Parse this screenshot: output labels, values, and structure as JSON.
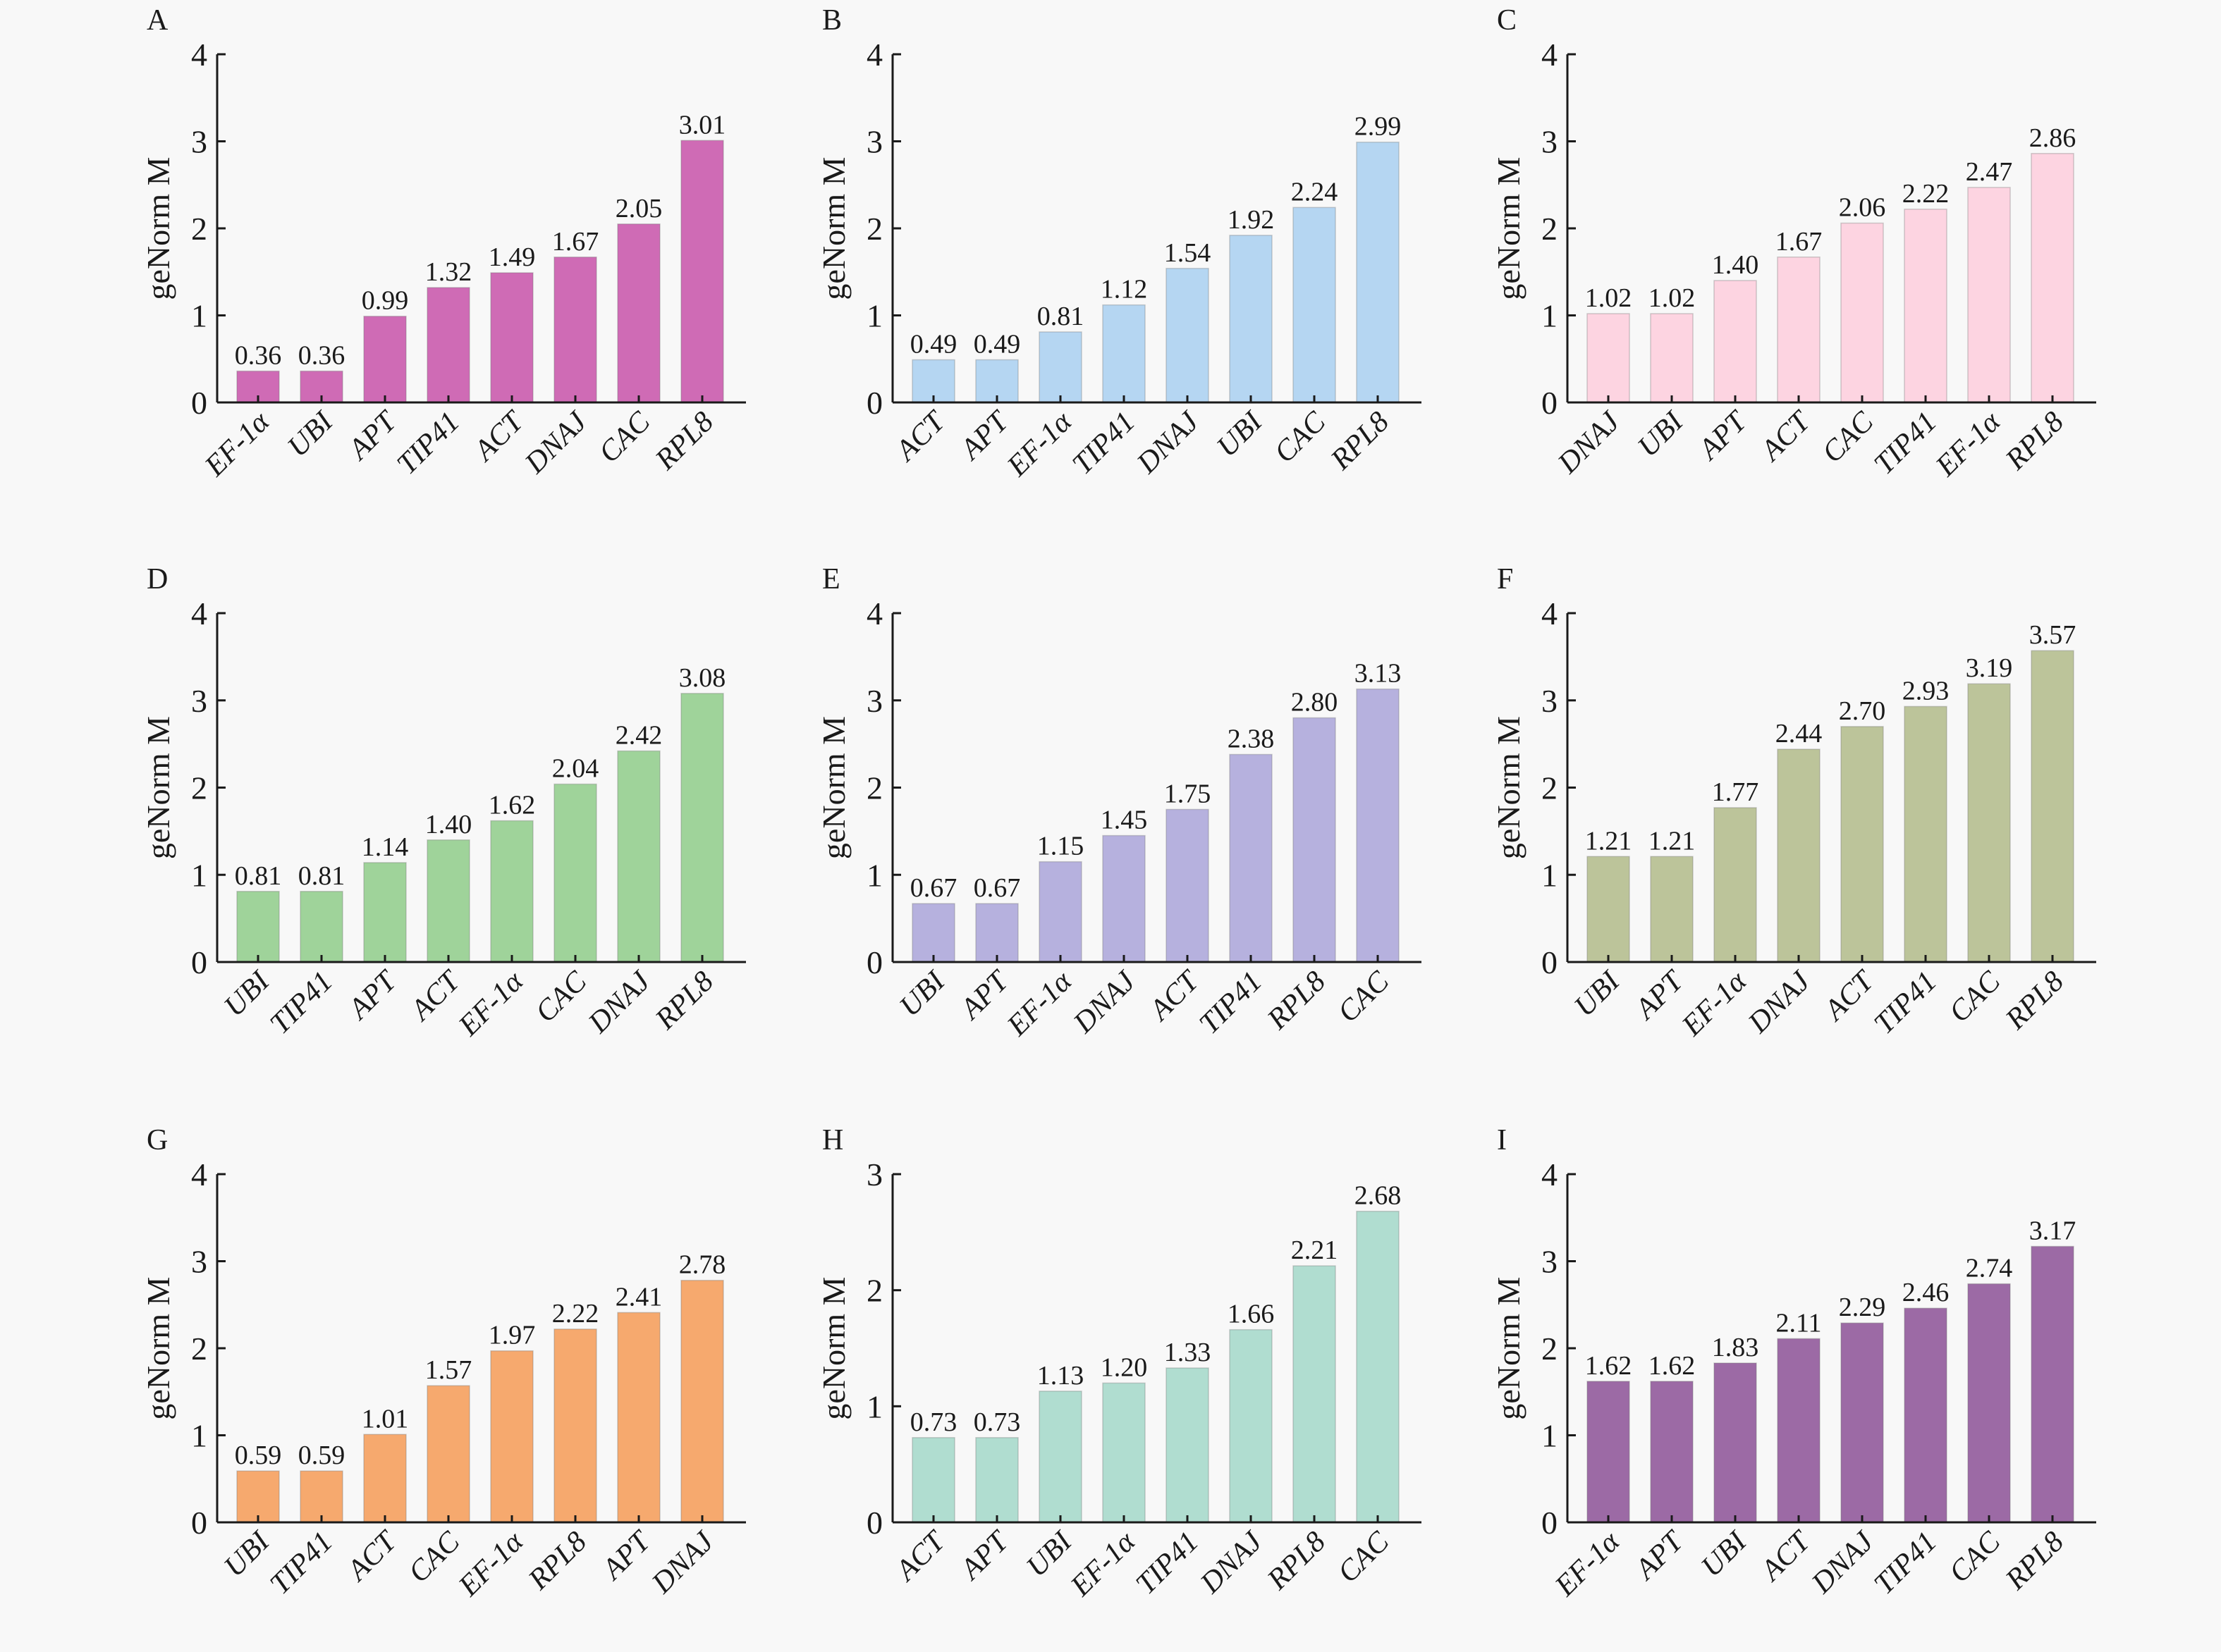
{
  "figure": {
    "y_axis_title": "geNorm M"
  },
  "chart_data": [
    {
      "type": "bar",
      "panel": "A",
      "color": "#cf6bb5",
      "categories": [
        "EF-1α",
        "UBI",
        "APT",
        "TIP41",
        "ACT",
        "DNAJ",
        "CAC",
        "RPL8"
      ],
      "values": [
        0.36,
        0.36,
        0.99,
        1.32,
        1.49,
        1.67,
        2.05,
        3.01
      ],
      "value_labels": [
        "0.36",
        "0.36",
        "0.99",
        "1.32",
        "1.49",
        "1.67",
        "2.05",
        "3.01"
      ],
      "ylabel": "geNorm M",
      "ylim": [
        0,
        4
      ],
      "yticks": [
        0,
        1,
        2,
        3,
        4
      ],
      "grid": false
    },
    {
      "type": "bar",
      "panel": "B",
      "color": "#b5d6f2",
      "categories": [
        "ACT",
        "APT",
        "EF-1α",
        "TIP41",
        "DNAJ",
        "UBI",
        "CAC",
        "RPL8"
      ],
      "values": [
        0.49,
        0.49,
        0.81,
        1.12,
        1.54,
        1.92,
        2.24,
        2.99
      ],
      "value_labels": [
        "0.49",
        "0.49",
        "0.81",
        "1.12",
        "1.54",
        "1.92",
        "2.24",
        "2.99"
      ],
      "ylabel": "geNorm M",
      "ylim": [
        0,
        4
      ],
      "yticks": [
        0,
        1,
        2,
        3,
        4
      ],
      "grid": false
    },
    {
      "type": "bar",
      "panel": "C",
      "color": "#fdd4e1",
      "categories": [
        "DNAJ",
        "UBI",
        "APT",
        "ACT",
        "CAC",
        "TIP41",
        "EF-1α",
        "RPL8"
      ],
      "values": [
        1.02,
        1.02,
        1.4,
        1.67,
        2.06,
        2.22,
        2.47,
        2.86
      ],
      "value_labels": [
        "1.02",
        "1.02",
        "1.40",
        "1.67",
        "2.06",
        "2.22",
        "2.47",
        "2.86"
      ],
      "ylabel": "geNorm M",
      "ylim": [
        0,
        4
      ],
      "yticks": [
        0,
        1,
        2,
        3,
        4
      ],
      "grid": false
    },
    {
      "type": "bar",
      "panel": "D",
      "color": "#9fd39a",
      "categories": [
        "UBI",
        "TIP41",
        "APT",
        "ACT",
        "EF-1α",
        "CAC",
        "DNAJ",
        "RPL8"
      ],
      "values": [
        0.81,
        0.81,
        1.14,
        1.4,
        1.62,
        2.04,
        2.42,
        3.08
      ],
      "value_labels": [
        "0.81",
        "0.81",
        "1.14",
        "1.40",
        "1.62",
        "2.04",
        "2.42",
        "3.08"
      ],
      "ylabel": "geNorm M",
      "ylim": [
        0,
        4
      ],
      "yticks": [
        0,
        1,
        2,
        3,
        4
      ],
      "grid": false
    },
    {
      "type": "bar",
      "panel": "E",
      "color": "#b6b1de",
      "categories": [
        "UBI",
        "APT",
        "EF-1α",
        "DNAJ",
        "ACT",
        "TIP41",
        "RPL8",
        "CAC"
      ],
      "values": [
        0.67,
        0.67,
        1.15,
        1.45,
        1.75,
        2.38,
        2.8,
        3.13
      ],
      "value_labels": [
        "0.67",
        "0.67",
        "1.15",
        "1.45",
        "1.75",
        "2.38",
        "2.80",
        "3.13"
      ],
      "ylabel": "geNorm M",
      "ylim": [
        0,
        4
      ],
      "yticks": [
        0,
        1,
        2,
        3,
        4
      ],
      "grid": false
    },
    {
      "type": "bar",
      "panel": "F",
      "color": "#bcc49a",
      "categories": [
        "UBI",
        "APT",
        "EF-1α",
        "DNAJ",
        "ACT",
        "TIP41",
        "CAC",
        "RPL8"
      ],
      "values": [
        1.21,
        1.21,
        1.77,
        2.44,
        2.7,
        2.93,
        3.19,
        3.57
      ],
      "value_labels": [
        "1.21",
        "1.21",
        "1.77",
        "2.44",
        "2.70",
        "2.93",
        "3.19",
        "3.57"
      ],
      "ylabel": "geNorm M",
      "ylim": [
        0,
        4
      ],
      "yticks": [
        0,
        1,
        2,
        3,
        4
      ],
      "grid": false
    },
    {
      "type": "bar",
      "panel": "G",
      "color": "#f6a96e",
      "categories": [
        "UBI",
        "TIP41",
        "ACT",
        "CAC",
        "EF-1α",
        "RPL8",
        "APT",
        "DNAJ"
      ],
      "values": [
        0.59,
        0.59,
        1.01,
        1.57,
        1.97,
        2.22,
        2.41,
        2.78
      ],
      "value_labels": [
        "0.59",
        "0.59",
        "1.01",
        "1.57",
        "1.97",
        "2.22",
        "2.41",
        "2.78"
      ],
      "ylabel": "geNorm M",
      "ylim": [
        0,
        4
      ],
      "yticks": [
        0,
        1,
        2,
        3,
        4
      ],
      "grid": false
    },
    {
      "type": "bar",
      "panel": "H",
      "color": "#b0ddd0",
      "categories": [
        "ACT",
        "APT",
        "UBI",
        "EF-1α",
        "TIP41",
        "DNAJ",
        "RPL8",
        "CAC"
      ],
      "values": [
        0.73,
        0.73,
        1.13,
        1.2,
        1.33,
        1.66,
        2.21,
        2.68
      ],
      "value_labels": [
        "0.73",
        "0.73",
        "1.13",
        "1.20",
        "1.33",
        "1.66",
        "2.21",
        "2.68"
      ],
      "ylabel": "geNorm M",
      "ylim": [
        0,
        3
      ],
      "yticks": [
        0,
        1,
        2,
        3
      ],
      "grid": false
    },
    {
      "type": "bar",
      "panel": "I",
      "color": "#9c6aa5",
      "categories": [
        "EF-1α",
        "APT",
        "UBI",
        "ACT",
        "DNAJ",
        "TIP41",
        "CAC",
        "RPL8"
      ],
      "values": [
        1.62,
        1.62,
        1.83,
        2.11,
        2.29,
        2.46,
        2.74,
        3.17
      ],
      "value_labels": [
        "1.62",
        "1.62",
        "1.83",
        "2.11",
        "2.29",
        "2.46",
        "2.74",
        "3.17"
      ],
      "ylabel": "geNorm M",
      "ylim": [
        0,
        4
      ],
      "yticks": [
        0,
        1,
        2,
        3,
        4
      ],
      "grid": false
    }
  ]
}
